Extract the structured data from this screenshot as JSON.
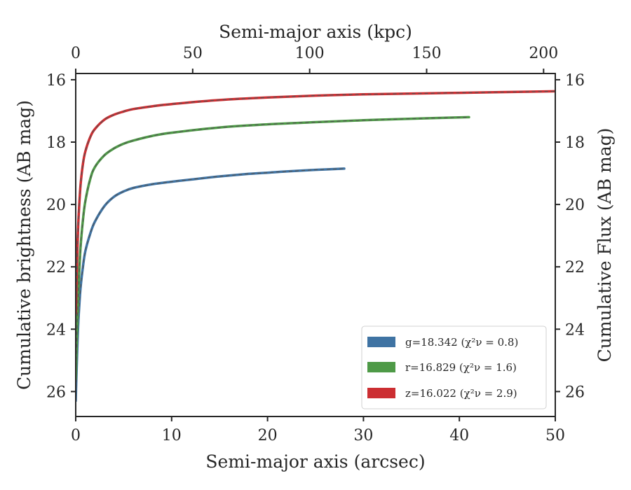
{
  "chart_data": {
    "type": "line",
    "xlabel_bottom": "Semi-major axis (arcsec)",
    "xlabel_top": "Semi-major axis (kpc)",
    "ylabel_left": "Cumulative brightness (AB mag)",
    "ylabel_right": "Cumulative Flux (AB mag)",
    "xlim": [
      0,
      50
    ],
    "xlim_top": [
      0,
      205
    ],
    "ylim": [
      26.8,
      15.8
    ],
    "y_inverted": true,
    "grid": false,
    "legend_position": "lower-right",
    "x_ticks": [
      "0",
      "10",
      "20",
      "30",
      "40",
      "50"
    ],
    "x_ticks_top": [
      "0",
      "50",
      "100",
      "150",
      "200"
    ],
    "y_ticks": [
      "16",
      "18",
      "20",
      "22",
      "24",
      "26"
    ],
    "series": [
      {
        "name": "g=18.342",
        "chi_label": "(χ²ν = 0.8)",
        "color": "#3f73a3",
        "x": [
          0.0,
          0.1,
          0.2,
          0.3,
          0.5,
          0.75,
          1.0,
          1.5,
          2.0,
          3.0,
          4.0,
          5.0,
          6.0,
          8.0,
          10.0,
          12.0,
          15.0,
          18.0,
          20.0,
          22.0,
          25.0,
          28.0
        ],
        "values": [
          26.3,
          25.2,
          24.3,
          23.6,
          22.7,
          22.0,
          21.5,
          20.95,
          20.55,
          20.05,
          19.75,
          19.58,
          19.47,
          19.35,
          19.27,
          19.2,
          19.1,
          19.02,
          18.98,
          18.94,
          18.89,
          18.85
        ]
      },
      {
        "name": "r=16.829",
        "chi_label": "(χ²ν = 1.6)",
        "color": "#4e9a47",
        "x": [
          0.0,
          0.1,
          0.2,
          0.3,
          0.5,
          0.75,
          1.0,
          1.5,
          2.0,
          3.0,
          4.0,
          5.0,
          6.0,
          8.0,
          10.0,
          15.0,
          20.0,
          25.0,
          30.0,
          35.0,
          41.0
        ],
        "values": [
          25.6,
          24.5,
          23.4,
          22.6,
          21.4,
          20.5,
          19.9,
          19.2,
          18.8,
          18.42,
          18.2,
          18.05,
          17.95,
          17.8,
          17.7,
          17.53,
          17.43,
          17.36,
          17.3,
          17.25,
          17.2
        ]
      },
      {
        "name": "z=16.022",
        "chi_label": "(χ²ν = 2.9)",
        "color": "#cc2e32",
        "x": [
          0.0,
          0.1,
          0.2,
          0.3,
          0.5,
          0.75,
          1.0,
          1.5,
          2.0,
          3.0,
          4.0,
          5.0,
          6.0,
          8.0,
          10.0,
          15.0,
          20.0,
          25.0,
          30.0,
          40.0,
          50.0
        ],
        "values": [
          23.5,
          22.3,
          21.2,
          20.4,
          19.4,
          18.7,
          18.3,
          17.85,
          17.58,
          17.28,
          17.12,
          17.02,
          16.94,
          16.85,
          16.78,
          16.65,
          16.57,
          16.51,
          16.47,
          16.42,
          16.37
        ]
      }
    ]
  }
}
